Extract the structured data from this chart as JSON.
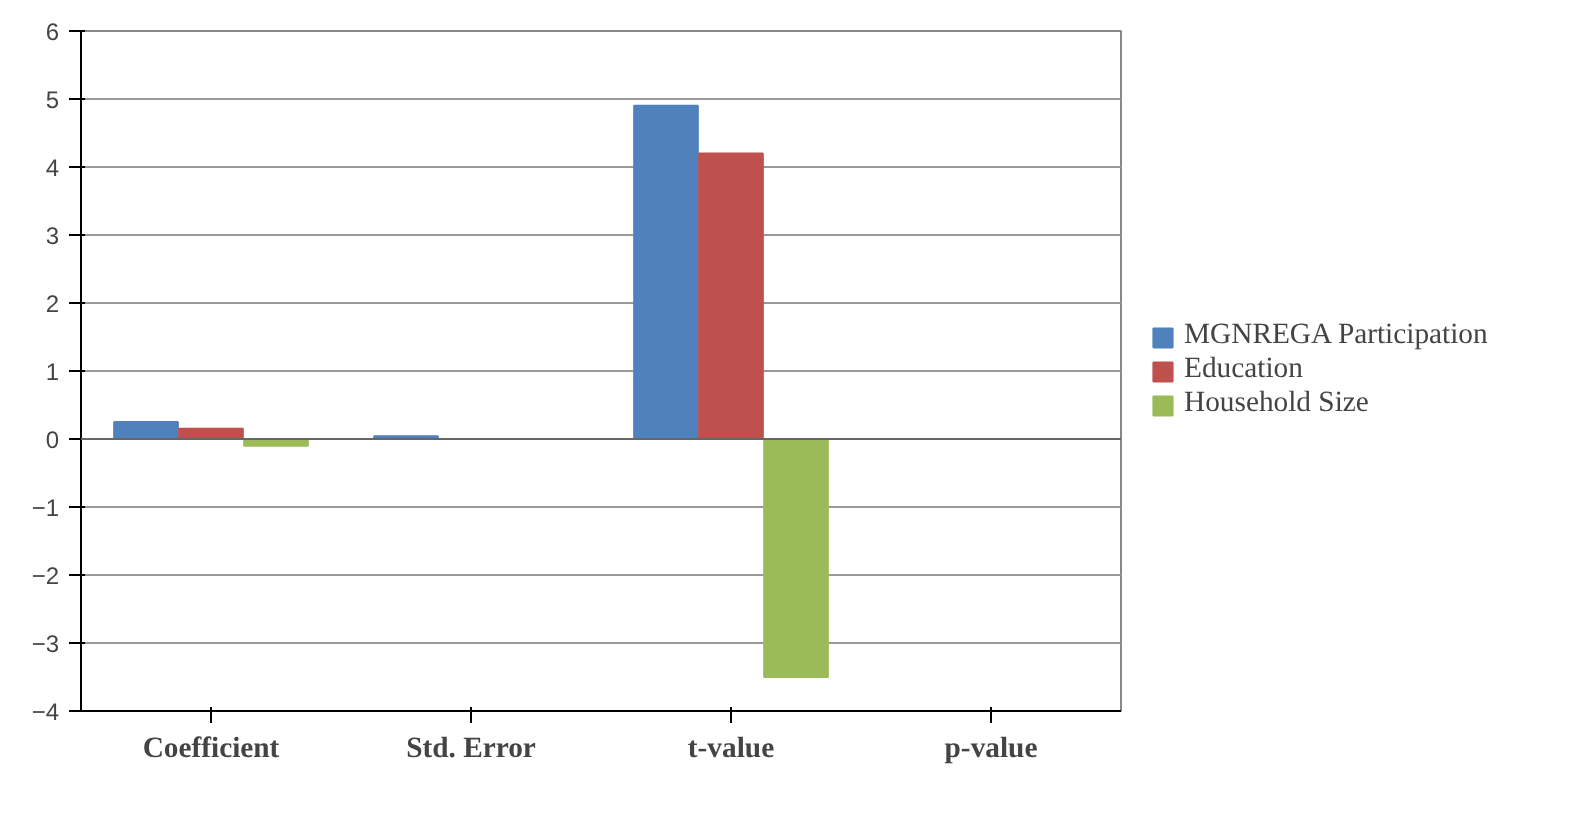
{
  "chart_data": {
    "type": "bar",
    "categories": [
      "Coefficient",
      "Std. Error",
      "t-value",
      "p-value"
    ],
    "series": [
      {
        "name": "MGNREGA Participation",
        "color": "#4f81bd",
        "values": [
          0.25,
          0.04,
          4.9,
          0
        ]
      },
      {
        "name": "Education",
        "color": "#c0504d",
        "values": [
          0.15,
          null,
          4.2,
          0
        ]
      },
      {
        "name": "Household Size",
        "color": "#9bbb59",
        "values": [
          -0.1,
          null,
          -3.5,
          0
        ]
      }
    ],
    "ylim": [
      -4,
      6
    ],
    "yticks": [
      -4,
      -3,
      -2,
      -1,
      0,
      1,
      2,
      3,
      4,
      5,
      6
    ],
    "grid": "y",
    "legend": "right"
  }
}
